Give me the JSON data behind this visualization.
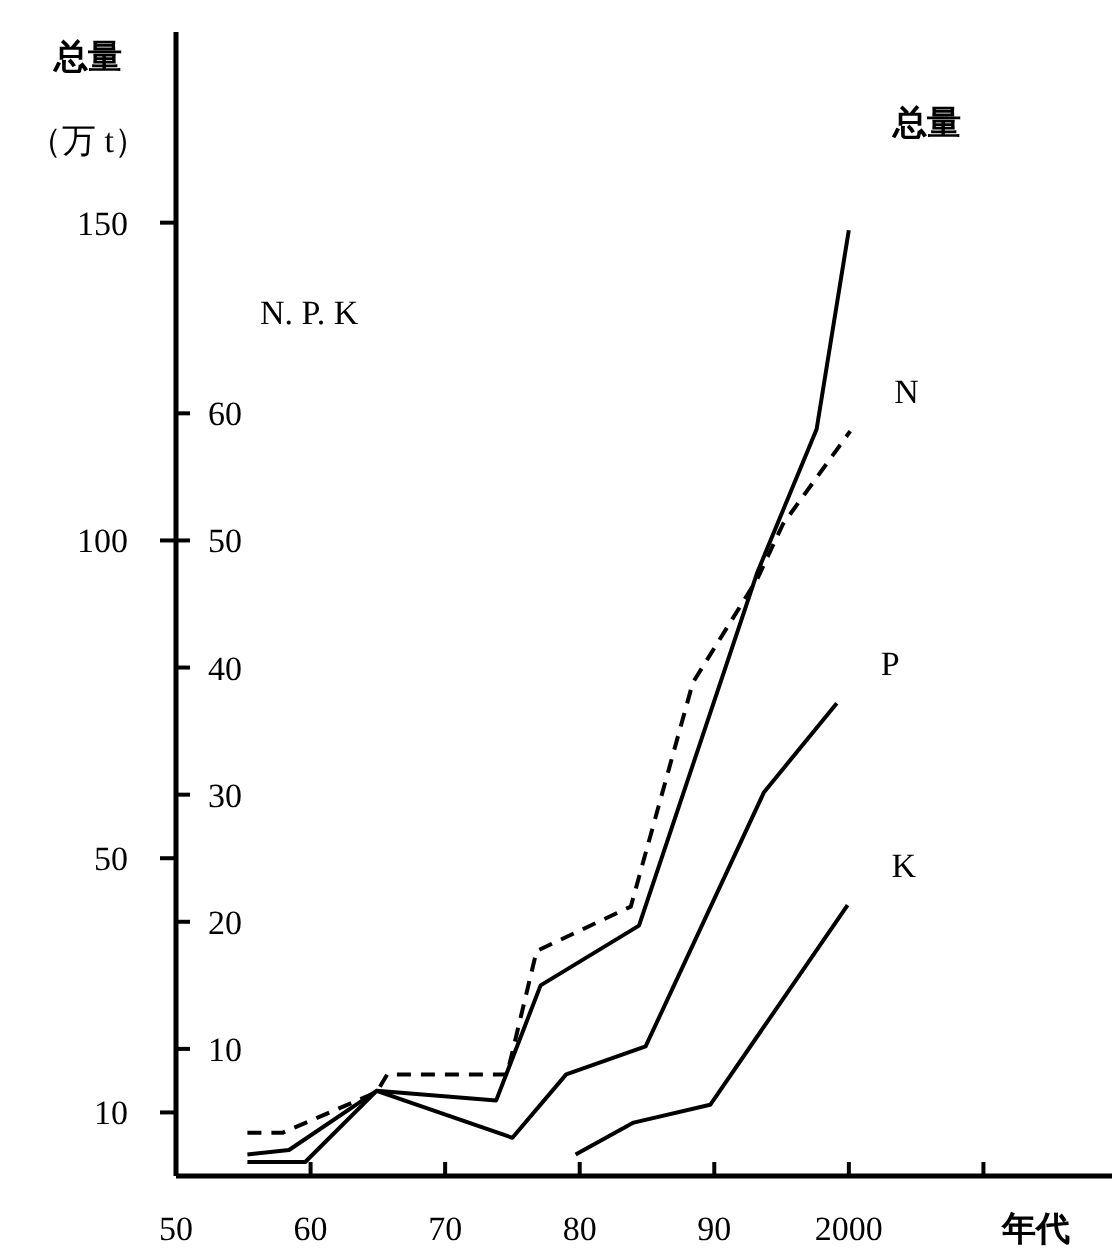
{
  "chart_data": {
    "type": "line",
    "xlabel": "年代",
    "ylabel": "总量（万 t）",
    "y2label": "N. P. K",
    "xlim": [
      1950,
      2020
    ],
    "xticks": [
      {
        "value": 1950,
        "label": "50"
      },
      {
        "value": 1960,
        "label": "60"
      },
      {
        "value": 1970,
        "label": "70"
      },
      {
        "value": 1980,
        "label": "80"
      },
      {
        "value": 1990,
        "label": "90"
      },
      {
        "value": 2000,
        "label": "2000"
      },
      {
        "value": 2010,
        "label": null
      }
    ],
    "ylim": [
      0,
      180
    ],
    "yticks": [
      10,
      50,
      100,
      150
    ],
    "y2lim": [
      0,
      90
    ],
    "y2ticks": [
      10,
      20,
      30,
      40,
      50,
      60
    ],
    "series": [
      {
        "name": "总量",
        "color": "#000000",
        "line_style": "solid",
        "x": [
          1955.3,
          1958.4,
          1964.9,
          1973.8,
          1977.1,
          1984.4,
          1993.2,
          1997.6,
          2000
        ],
        "values": [
          3.4,
          4.1,
          13.4,
          11.9,
          30,
          39.4,
          95,
          117.5,
          148.8
        ]
      },
      {
        "name": "N",
        "color": "#000000",
        "axis": "y2",
        "line_style": "dashed",
        "x": [
          1955.3,
          1957.9,
          1964.9,
          1965.7,
          1974.6,
          1976.8,
          1983.8,
          1988.4,
          1993.2,
          1995.1,
          2000.1
        ],
        "values": [
          3.4,
          3.4,
          6.6,
          8,
          8,
          17.7,
          21.2,
          38.8,
          47,
          51.3,
          58.6
        ]
      },
      {
        "name": "P",
        "color": "#000000",
        "axis": "y2",
        "line_style": "solid",
        "x": [
          1955.3,
          1959.6,
          1964.9,
          1975,
          1979,
          1984.9,
          1993.7,
          1999.1
        ],
        "values": [
          1.1,
          1.1,
          6.7,
          3,
          8,
          10.2,
          30.2,
          37.2
        ]
      },
      {
        "name": "K",
        "color": "#000000",
        "axis": "y2",
        "line_style": "solid",
        "x": [
          1979.7,
          1984,
          1989.7,
          1999.9
        ],
        "values": [
          1.7,
          4.2,
          5.6,
          21.3
        ]
      }
    ]
  }
}
